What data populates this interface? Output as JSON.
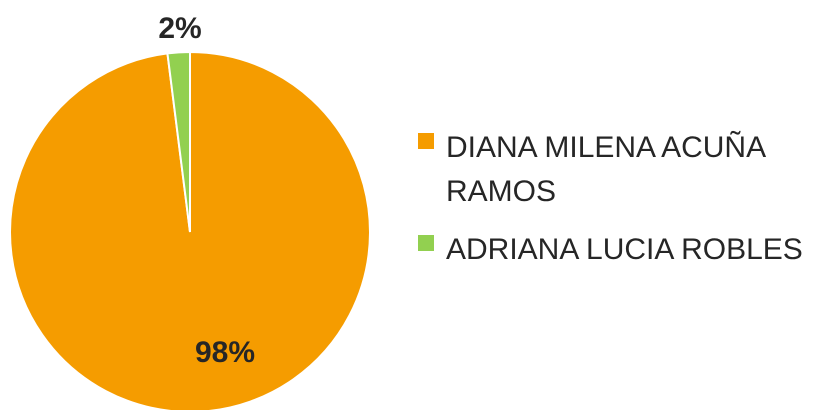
{
  "chart_data": {
    "type": "pie",
    "categories": [
      "DIANA MILENA ACUÑA RAMOS",
      "ADRIANA LUCIA ROBLES"
    ],
    "values": [
      98,
      2
    ],
    "data_labels": [
      "98%",
      "2%"
    ],
    "colors": [
      "#F59C00",
      "#92D050"
    ],
    "legend": {
      "placement": "right",
      "entries": [
        {
          "lines": [
            "DIANA MILENA ACUÑA",
            "RAMOS"
          ],
          "color": "#F59C00"
        },
        {
          "lines": [
            "ADRIANA LUCIA ROBLES"
          ],
          "color": "#92D050"
        }
      ]
    }
  }
}
